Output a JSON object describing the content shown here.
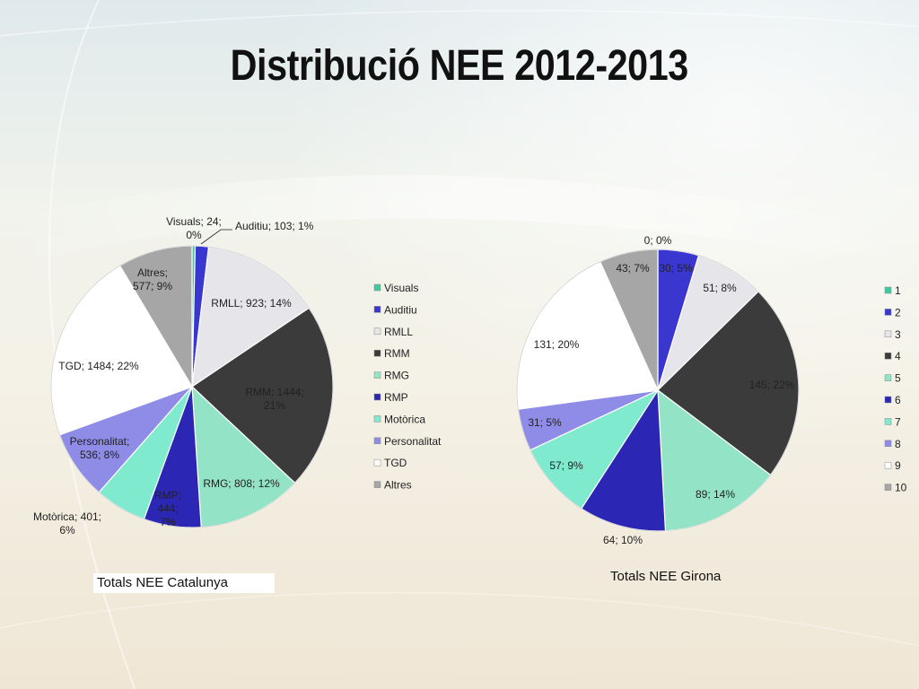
{
  "title": "Distribució NEE 2012-2013",
  "colors": {
    "teal": "#3fc9a3",
    "blue": "#3630c4",
    "light": "#e7e7ea",
    "dark": "#3a3a3a",
    "mint": "#8fe3c3",
    "deep_blue": "#2a24b0",
    "aqua": "#7ee8cf",
    "lavender": "#8c89e6",
    "white": "#ffffff",
    "grey": "#a8a8a8"
  },
  "chart_data": [
    {
      "type": "pie",
      "title": "Totals NEE Catalunya",
      "legend_position": "right",
      "slices": [
        {
          "name": "Visuals",
          "value": 24,
          "percent": "0%",
          "label": "Visuals; 24; 0%",
          "color": "#3fc9a3"
        },
        {
          "name": "Auditiu",
          "value": 103,
          "percent": "1%",
          "label": "Auditiu; 103; 1%",
          "color": "#3a36d0"
        },
        {
          "name": "RMLL",
          "value": 923,
          "percent": "14%",
          "label": "RMLL; 923; 14%",
          "color": "#e6e6ea"
        },
        {
          "name": "RMM",
          "value": 1444,
          "percent": "21%",
          "label": "RMM; 1444; 21%",
          "color": "#3b3b3b"
        },
        {
          "name": "RMG",
          "value": 808,
          "percent": "12%",
          "label": "RMG; 808; 12%",
          "color": "#93e4c6"
        },
        {
          "name": "RMP",
          "value": 444,
          "percent": "7%",
          "label": "RMP; 444; 7%",
          "color": "#2b26b4"
        },
        {
          "name": "Motòrica",
          "value": 401,
          "percent": "6%",
          "label": "Motòrica; 401; 6%",
          "color": "#7feacd"
        },
        {
          "name": "Personalitat",
          "value": 536,
          "percent": "8%",
          "label": "Personalitat; 536; 8%",
          "color": "#8f8ce8"
        },
        {
          "name": "TGD",
          "value": 1484,
          "percent": "22%",
          "label": "TGD; 1484; 22%",
          "color": "#ffffff"
        },
        {
          "name": "Altres",
          "value": 577,
          "percent": "9%",
          "label": "Altres; 577; 9%",
          "color": "#a6a6a6"
        }
      ]
    },
    {
      "type": "pie",
      "title": "Totals NEE Girona",
      "legend_position": "right",
      "slices": [
        {
          "name": "1",
          "value": 0,
          "percent": "0%",
          "label": "0; 0%",
          "color": "#3fc9a3"
        },
        {
          "name": "2",
          "value": 30,
          "percent": "5%",
          "label": "30; 5%",
          "color": "#3a36d0"
        },
        {
          "name": "3",
          "value": 51,
          "percent": "8%",
          "label": "51; 8%",
          "color": "#e6e6ea"
        },
        {
          "name": "4",
          "value": 145,
          "percent": "22%",
          "label": "145; 22%",
          "color": "#3b3b3b"
        },
        {
          "name": "5",
          "value": 89,
          "percent": "14%",
          "label": "89; 14%",
          "color": "#93e4c6"
        },
        {
          "name": "6",
          "value": 64,
          "percent": "10%",
          "label": "64; 10%",
          "color": "#2b26b4"
        },
        {
          "name": "7",
          "value": 57,
          "percent": "9%",
          "label": "57; 9%",
          "color": "#7feacd"
        },
        {
          "name": "8",
          "value": 31,
          "percent": "5%",
          "label": "31; 5%",
          "color": "#8f8ce8"
        },
        {
          "name": "9",
          "value": 131,
          "percent": "20%",
          "label": "131; 20%",
          "color": "#ffffff"
        },
        {
          "name": "10",
          "value": 43,
          "percent": "7%",
          "label": "43; 7%",
          "color": "#a6a6a6"
        }
      ]
    }
  ]
}
